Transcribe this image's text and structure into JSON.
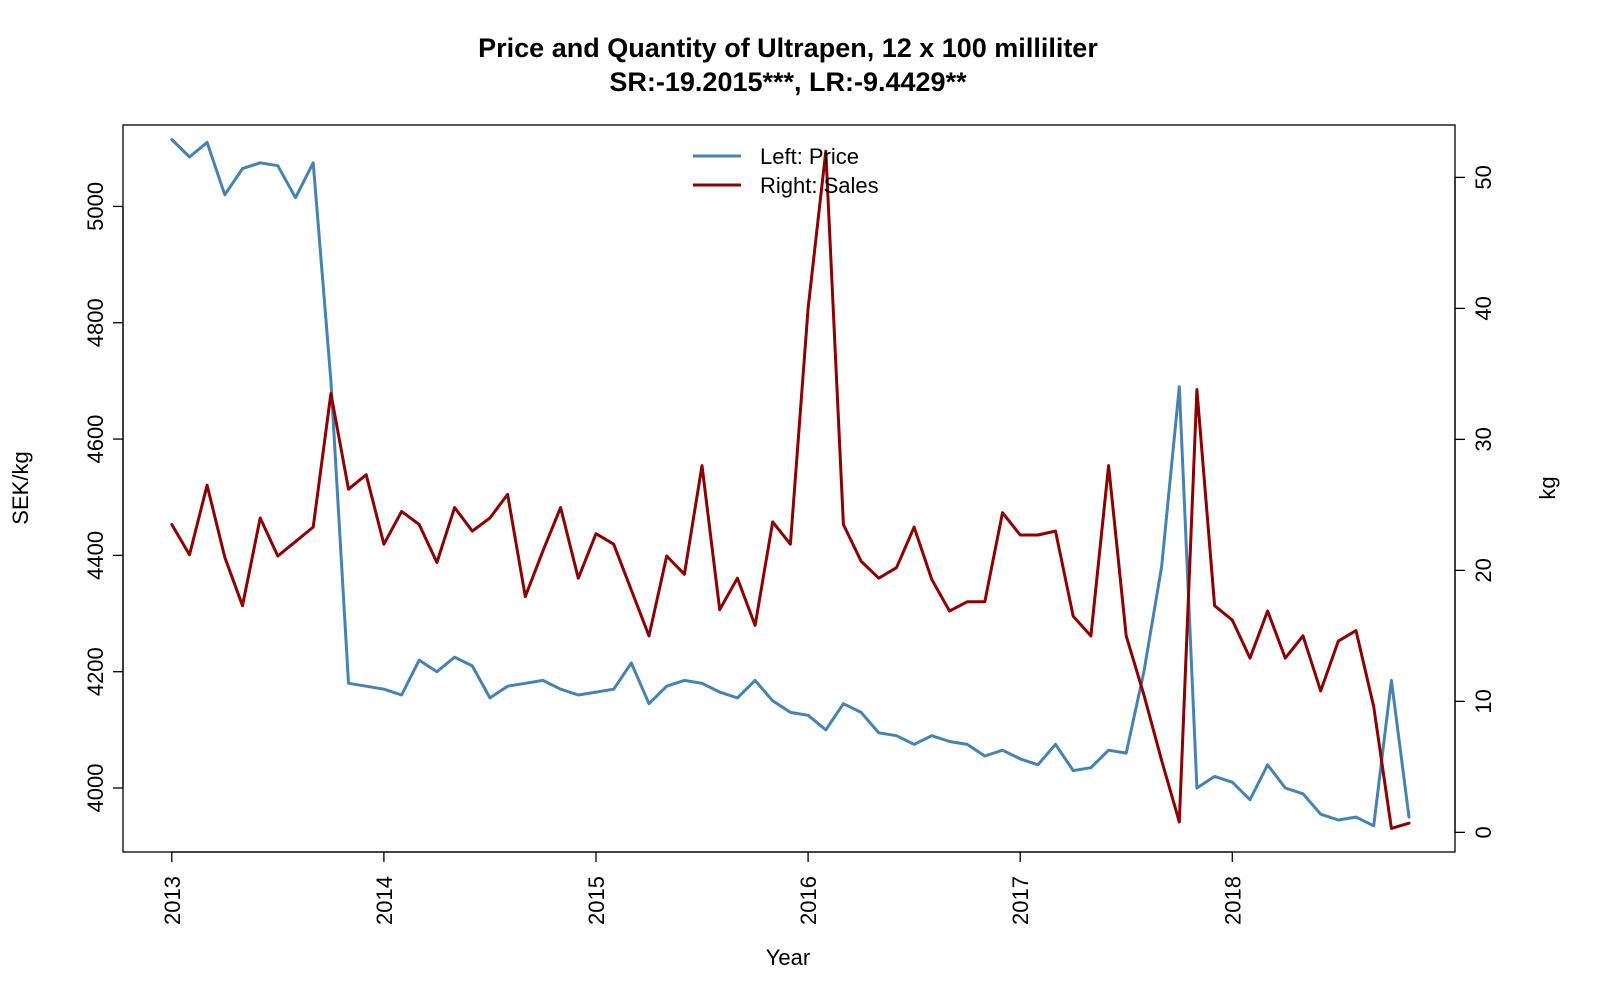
{
  "chart_data": {
    "type": "line",
    "title": "Price and Quantity of Ultrapen, 12 x 100 milliliter",
    "subtitle": "SR:-19.2015***, LR:-9.4429**",
    "xlabel": "Year",
    "ylabel_left": "SEK/kg",
    "ylabel_right": "kg",
    "x_ticks": [
      "2013",
      "2014",
      "2015",
      "2016",
      "2017",
      "2018"
    ],
    "y_left_ticks": [
      "4000",
      "4200",
      "4400",
      "4600",
      "4800",
      "5000"
    ],
    "y_right_ticks": [
      "0",
      "10",
      "20",
      "30",
      "40",
      "50"
    ],
    "xlim": [
      2012.77,
      2019.05
    ],
    "ylim_left": [
      3890,
      5140
    ],
    "ylim_right": [
      -1.5,
      54
    ],
    "grid": false,
    "legend": {
      "placement": "top-center",
      "entries": [
        "Left: Price",
        "Right: Sales"
      ]
    },
    "x_start_year": 2013,
    "x_step_months": 1,
    "series": [
      {
        "name": "Left: Price",
        "axis": "left",
        "color": "#4682b4",
        "values": [
          5115,
          5085,
          5110,
          5020,
          5065,
          5075,
          5070,
          5015,
          5075,
          4700,
          4180,
          4175,
          4170,
          4160,
          4220,
          4200,
          4225,
          4210,
          4155,
          4175,
          4180,
          4185,
          4170,
          4160,
          4165,
          4170,
          4215,
          4145,
          4175,
          4185,
          4180,
          4165,
          4155,
          4185,
          4150,
          4130,
          4125,
          4100,
          4145,
          4130,
          4095,
          4090,
          4075,
          4090,
          4080,
          4075,
          4055,
          4065,
          4050,
          4040,
          4075,
          4030,
          4035,
          4065,
          4060,
          4200,
          4380,
          4690,
          4000,
          4020,
          4010,
          3980,
          4040,
          4000,
          3990,
          3955,
          3945,
          3950,
          3935,
          4185,
          3950
        ]
      },
      {
        "name": "Right: Sales",
        "axis": "right",
        "color": "#8b0000",
        "values": [
          23.5,
          21.2,
          26.5,
          21.0,
          17.3,
          24.0,
          21.1,
          22.2,
          23.3,
          33.5,
          26.2,
          27.3,
          22.0,
          24.5,
          23.5,
          20.6,
          24.8,
          23.0,
          24.0,
          25.8,
          18.0,
          21.5,
          24.8,
          19.4,
          22.8,
          22.0,
          18.5,
          15.0,
          21.1,
          19.7,
          28.0,
          17.0,
          19.4,
          15.8,
          23.7,
          22.0,
          40.0,
          52.0,
          23.5,
          20.7,
          19.4,
          20.2,
          23.3,
          19.3,
          16.9,
          17.6,
          17.6,
          24.4,
          22.7,
          22.7,
          23.0,
          16.5,
          15.0,
          28.0,
          15.0,
          10.5,
          5.5,
          0.8,
          33.8,
          17.3,
          16.2,
          13.3,
          16.9,
          13.3,
          15.0,
          10.8,
          14.6,
          15.4,
          9.6,
          0.3,
          0.7
        ]
      }
    ]
  }
}
